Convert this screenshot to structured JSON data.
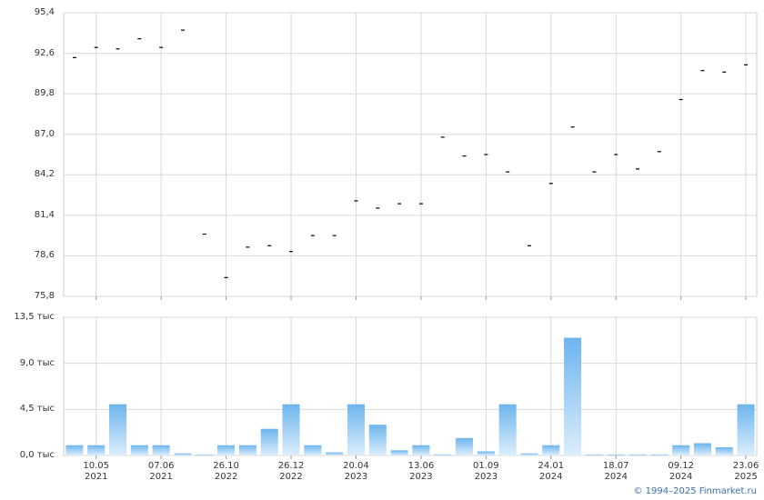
{
  "chart_data": [
    {
      "type": "dash",
      "categories": [
        null,
        "10.05\n2021",
        null,
        null,
        "07.06\n2021",
        null,
        null,
        "26.10\n2022",
        null,
        null,
        "26.12\n2022",
        null,
        null,
        "20.04\n2023",
        null,
        null,
        "13.06\n2023",
        null,
        null,
        "01.09\n2023",
        null,
        null,
        "24.01\n2024",
        null,
        null,
        "18.07\n2024",
        null,
        null,
        "09.12\n2024",
        null,
        null,
        "23.06\n2025"
      ],
      "values": [
        92.3,
        93.0,
        92.9,
        93.6,
        93.0,
        94.2,
        80.1,
        77.1,
        79.2,
        79.3,
        78.9,
        80.0,
        80.0,
        82.4,
        81.9,
        82.2,
        82.2,
        86.8,
        85.5,
        85.6,
        84.4,
        79.3,
        83.6,
        87.5,
        84.4,
        85.6,
        84.6,
        85.8,
        89.4,
        91.4,
        91.3,
        91.8
      ],
      "color": "#000000",
      "ylim": [
        75.8,
        95.4
      ],
      "yticks": [
        {
          "value": 75.8,
          "label": "75,8"
        },
        {
          "value": 78.6,
          "label": "78,6"
        },
        {
          "value": 81.4,
          "label": "81,4"
        },
        {
          "value": 84.2,
          "label": "84,2"
        },
        {
          "value": 87.0,
          "label": "87,0"
        },
        {
          "value": 89.8,
          "label": "89,8"
        },
        {
          "value": 92.6,
          "label": "92,6"
        },
        {
          "value": 95.4,
          "label": "95,4"
        }
      ],
      "grid": true
    },
    {
      "type": "bar",
      "categories": [
        null,
        "10.05\n2021",
        null,
        null,
        "07.06\n2021",
        null,
        null,
        "26.10\n2022",
        null,
        null,
        "26.12\n2022",
        null,
        null,
        "20.04\n2023",
        null,
        null,
        "13.06\n2023",
        null,
        null,
        "01.09\n2023",
        null,
        null,
        "24.01\n2024",
        null,
        null,
        "18.07\n2024",
        null,
        null,
        "09.12\n2024",
        null,
        null,
        "23.06\n2025"
      ],
      "values": [
        1.0,
        1.0,
        5.0,
        1.0,
        1.0,
        0.2,
        0.1,
        1.0,
        1.0,
        2.6,
        5.0,
        1.0,
        0.3,
        5.0,
        3.0,
        0.5,
        1.0,
        0.1,
        1.7,
        0.4,
        5.0,
        0.2,
        1.0,
        11.5,
        0.1,
        0.1,
        0.1,
        0.1,
        1.0,
        1.2,
        0.8,
        5.0
      ],
      "color": "#6db5ee",
      "ylim": [
        0,
        13.5
      ],
      "yticks": [
        {
          "value": 0,
          "label": "0,0 тыс"
        },
        {
          "value": 4.5,
          "label": "4,5 тыс"
        },
        {
          "value": 9.0,
          "label": "9,0 тыс"
        },
        {
          "value": 13.5,
          "label": "13,5 тыс"
        }
      ],
      "grid": true,
      "footer": "© 1994–2025 Finmarket.ru"
    }
  ]
}
